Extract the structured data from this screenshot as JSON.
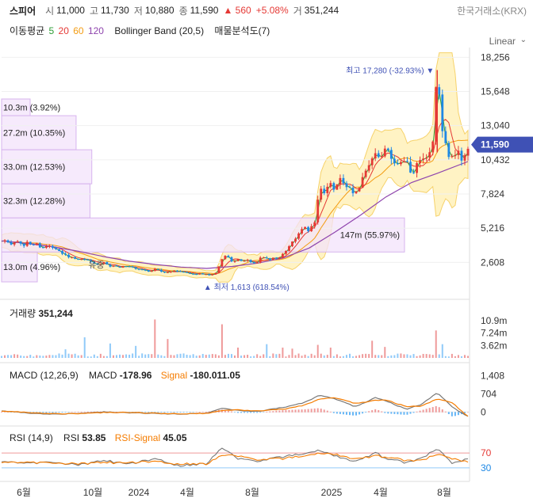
{
  "header": {
    "name": "스피어",
    "open_label": "시",
    "open": "11,000",
    "high_label": "고",
    "high": "11,730",
    "low_label": "저",
    "low": "10,880",
    "close_label": "종",
    "close": "11,590",
    "change": "▲ 560",
    "change_pct": "+5.08%",
    "volume_label": "거",
    "volume": "351,244",
    "exchange": "한국거래소(KRX)"
  },
  "indicators_legend": {
    "ma_label": "이동평균",
    "ma5": "5",
    "ma20": "20",
    "ma60": "60",
    "ma120": "120",
    "bollinger": "Bollinger Band (20,5)",
    "volume_profile": "매물분석도(7)"
  },
  "scale_mode": "Linear",
  "colors": {
    "up": "#e53935",
    "down": "#1e88e5",
    "ma5": "#2e9e36",
    "ma20": "#e53935",
    "ma60": "#f39c12",
    "ma120": "#8e44ad",
    "boll_fill": "#fff3c4",
    "boll_line": "#f6d26b",
    "profile_fill": "#f3e3fb",
    "profile_border": "#d7b4ee",
    "macd": "#777777",
    "signal": "#f57c00",
    "rsi": "#777777",
    "rsi_signal": "#f57c00",
    "price_tag": "#3f51b5"
  },
  "chart_data": [
    {
      "type": "candlestick",
      "x": [
        "6월",
        "10월",
        "2024",
        "4월",
        "8월",
        "2025",
        "4월",
        "8월"
      ],
      "ylim": [
        1000,
        19000
      ],
      "y_ticks": [
        "18,256",
        "15,648",
        "13,040",
        "10,432",
        "7,824",
        "5,216",
        "2,608"
      ],
      "y_tick_values": [
        18256,
        15648,
        13040,
        10432,
        7824,
        5216,
        2608
      ],
      "current_price": "11,590",
      "current_value": 11590,
      "max_annotation": "최고 17,280 (-32.93%)",
      "max_value": 17280,
      "min_annotation": "최저 1,613 (618.54%)",
      "min_value": 1613,
      "event_label": "유증",
      "close_series": [
        [
          0,
          4300
        ],
        [
          4,
          4200
        ],
        [
          8,
          4050
        ],
        [
          12,
          4150
        ],
        [
          16,
          3900
        ],
        [
          20,
          4100
        ],
        [
          24,
          3850
        ],
        [
          28,
          4000
        ],
        [
          32,
          3700
        ],
        [
          36,
          3950
        ],
        [
          40,
          3800
        ],
        [
          44,
          3500
        ],
        [
          48,
          3300
        ],
        [
          52,
          3050
        ],
        [
          56,
          2950
        ],
        [
          60,
          2850
        ],
        [
          64,
          2800
        ],
        [
          68,
          2750
        ],
        [
          72,
          2550
        ],
        [
          76,
          2450
        ],
        [
          80,
          2700
        ],
        [
          84,
          2350
        ],
        [
          88,
          2300
        ],
        [
          92,
          2250
        ],
        [
          96,
          2400
        ],
        [
          100,
          2250
        ],
        [
          104,
          2150
        ],
        [
          108,
          2100
        ],
        [
          112,
          2000
        ],
        [
          116,
          1900
        ],
        [
          120,
          2200
        ],
        [
          124,
          1950
        ],
        [
          128,
          1850
        ],
        [
          132,
          1950
        ],
        [
          136,
          1900
        ],
        [
          140,
          1850
        ],
        [
          144,
          1800
        ],
        [
          148,
          1750
        ],
        [
          152,
          1700
        ],
        [
          156,
          1750
        ],
        [
          160,
          1650
        ],
        [
          164,
          1613
        ],
        [
          168,
          1900
        ],
        [
          172,
          2800
        ],
        [
          176,
          3200
        ],
        [
          180,
          2600
        ],
        [
          184,
          2900
        ],
        [
          188,
          2600
        ],
        [
          192,
          2800
        ],
        [
          196,
          2550
        ],
        [
          200,
          2700
        ],
        [
          204,
          3100
        ],
        [
          208,
          2750
        ],
        [
          212,
          3000
        ],
        [
          216,
          2900
        ],
        [
          220,
          3300
        ],
        [
          224,
          3900
        ],
        [
          228,
          4400
        ],
        [
          232,
          4700
        ],
        [
          236,
          5400
        ],
        [
          240,
          4900
        ],
        [
          244,
          5600
        ],
        [
          248,
          8300
        ],
        [
          252,
          7700
        ],
        [
          256,
          8600
        ],
        [
          260,
          7900
        ],
        [
          264,
          8800
        ],
        [
          268,
          8500
        ],
        [
          272,
          8200
        ],
        [
          276,
          7700
        ],
        [
          280,
          8600
        ],
        [
          284,
          9800
        ],
        [
          288,
          10400
        ],
        [
          292,
          11100
        ],
        [
          296,
          10600
        ],
        [
          300,
          11500
        ],
        [
          304,
          10400
        ],
        [
          308,
          9700
        ],
        [
          312,
          10200
        ],
        [
          316,
          10100
        ],
        [
          320,
          9400
        ],
        [
          324,
          10200
        ],
        [
          328,
          10800
        ],
        [
          332,
          10400
        ],
        [
          336,
          11300
        ],
        [
          340,
          17280
        ],
        [
          344,
          12500
        ],
        [
          348,
          11000
        ],
        [
          352,
          10700
        ],
        [
          356,
          11200
        ],
        [
          360,
          10300
        ],
        [
          364,
          11590
        ]
      ],
      "ma120": [
        [
          0,
          4250
        ],
        [
          20,
          4050
        ],
        [
          40,
          3800
        ],
        [
          60,
          3450
        ],
        [
          80,
          3050
        ],
        [
          100,
          2700
        ],
        [
          120,
          2450
        ],
        [
          140,
          2250
        ],
        [
          160,
          2150
        ],
        [
          180,
          2300
        ],
        [
          200,
          2550
        ],
        [
          220,
          2950
        ],
        [
          240,
          3700
        ],
        [
          260,
          4900
        ],
        [
          280,
          6200
        ],
        [
          300,
          7600
        ],
        [
          320,
          8700
        ],
        [
          340,
          9400
        ],
        [
          364,
          10300
        ]
      ],
      "volume_profile": [
        {
          "label": "10.3m (3.92%)",
          "pct": 3.92
        },
        {
          "label": "27.2m (10.35%)",
          "pct": 10.35
        },
        {
          "label": "33.0m (12.53%)",
          "pct": 12.53
        },
        {
          "label": "32.3m (12.28%)",
          "pct": 12.28
        },
        {
          "label": "147m (55.97%)",
          "pct": 55.97
        },
        {
          "label": "13.0m (4.96%)",
          "pct": 4.96
        }
      ]
    },
    {
      "type": "bar",
      "title": "거래량",
      "value": "351,244",
      "y_ticks": [
        "10.9m",
        "7.24m",
        "3.62m"
      ],
      "y_tick_values": [
        10900000,
        7240000,
        3620000
      ],
      "ylim": [
        0,
        12000000
      ],
      "spikes": [
        [
          50,
          2500000
        ],
        [
          66,
          6000000
        ],
        [
          84,
          4200000
        ],
        [
          104,
          3500000
        ],
        [
          120,
          11200000
        ],
        [
          130,
          5500000
        ],
        [
          172,
          9800000
        ],
        [
          184,
          3000000
        ],
        [
          206,
          4000000
        ],
        [
          220,
          3000000
        ],
        [
          228,
          2700000
        ],
        [
          248,
          3800000
        ],
        [
          256,
          3000000
        ],
        [
          290,
          5000000
        ],
        [
          300,
          3200000
        ],
        [
          340,
          8000000
        ],
        [
          344,
          4000000
        ]
      ]
    },
    {
      "type": "line",
      "title": "MACD (12,26,9)",
      "macd_label": "MACD",
      "macd_value": "-178.96",
      "signal_label": "Signal",
      "signal_value": "-180.011.05",
      "y_ticks": [
        "1,408",
        "704",
        "0"
      ],
      "y_tick_values": [
        1408,
        704,
        0
      ],
      "ylim": [
        -300,
        1550
      ],
      "macd_series": [
        [
          0,
          50
        ],
        [
          20,
          -40
        ],
        [
          40,
          -90
        ],
        [
          60,
          -60
        ],
        [
          80,
          0
        ],
        [
          100,
          -30
        ],
        [
          120,
          -60
        ],
        [
          140,
          -80
        ],
        [
          160,
          -50
        ],
        [
          172,
          150
        ],
        [
          184,
          60
        ],
        [
          200,
          20
        ],
        [
          220,
          180
        ],
        [
          236,
          360
        ],
        [
          248,
          650
        ],
        [
          260,
          520
        ],
        [
          276,
          200
        ],
        [
          292,
          560
        ],
        [
          300,
          430
        ],
        [
          316,
          100
        ],
        [
          328,
          300
        ],
        [
          340,
          760
        ],
        [
          352,
          180
        ],
        [
          364,
          -178.96
        ]
      ],
      "signal_series": [
        [
          0,
          40
        ],
        [
          20,
          -20
        ],
        [
          40,
          -70
        ],
        [
          60,
          -70
        ],
        [
          80,
          -20
        ],
        [
          100,
          -20
        ],
        [
          120,
          -50
        ],
        [
          140,
          -70
        ],
        [
          160,
          -60
        ],
        [
          172,
          60
        ],
        [
          184,
          80
        ],
        [
          200,
          40
        ],
        [
          220,
          110
        ],
        [
          236,
          260
        ],
        [
          248,
          500
        ],
        [
          260,
          560
        ],
        [
          276,
          330
        ],
        [
          292,
          450
        ],
        [
          300,
          470
        ],
        [
          316,
          200
        ],
        [
          328,
          230
        ],
        [
          340,
          520
        ],
        [
          352,
          350
        ],
        [
          364,
          -180
        ]
      ]
    },
    {
      "type": "line",
      "title": "RSI (14,9)",
      "rsi_label": "RSI",
      "rsi_value": "53.85",
      "signal_label": "RSI-Signal",
      "signal_value": "45.05",
      "y_ticks": [
        "70",
        "30"
      ],
      "y_tick_values": [
        70,
        30
      ],
      "ylim": [
        0,
        100
      ],
      "rsi_series": [
        [
          0,
          48
        ],
        [
          20,
          42
        ],
        [
          40,
          46
        ],
        [
          60,
          38
        ],
        [
          80,
          50
        ],
        [
          100,
          40
        ],
        [
          120,
          55
        ],
        [
          140,
          35
        ],
        [
          160,
          42
        ],
        [
          172,
          85
        ],
        [
          184,
          55
        ],
        [
          200,
          48
        ],
        [
          220,
          60
        ],
        [
          236,
          68
        ],
        [
          248,
          78
        ],
        [
          260,
          62
        ],
        [
          276,
          48
        ],
        [
          292,
          70
        ],
        [
          300,
          56
        ],
        [
          316,
          44
        ],
        [
          328,
          58
        ],
        [
          340,
          80
        ],
        [
          352,
          42
        ],
        [
          364,
          53.85
        ]
      ],
      "signal_series": [
        [
          0,
          46
        ],
        [
          20,
          44
        ],
        [
          40,
          44
        ],
        [
          60,
          41
        ],
        [
          80,
          45
        ],
        [
          100,
          43
        ],
        [
          120,
          48
        ],
        [
          140,
          40
        ],
        [
          160,
          41
        ],
        [
          172,
          65
        ],
        [
          184,
          62
        ],
        [
          200,
          52
        ],
        [
          220,
          55
        ],
        [
          236,
          62
        ],
        [
          248,
          70
        ],
        [
          260,
          66
        ],
        [
          276,
          55
        ],
        [
          292,
          62
        ],
        [
          300,
          60
        ],
        [
          316,
          50
        ],
        [
          328,
          52
        ],
        [
          340,
          65
        ],
        [
          352,
          55
        ],
        [
          364,
          45.05
        ]
      ]
    }
  ]
}
